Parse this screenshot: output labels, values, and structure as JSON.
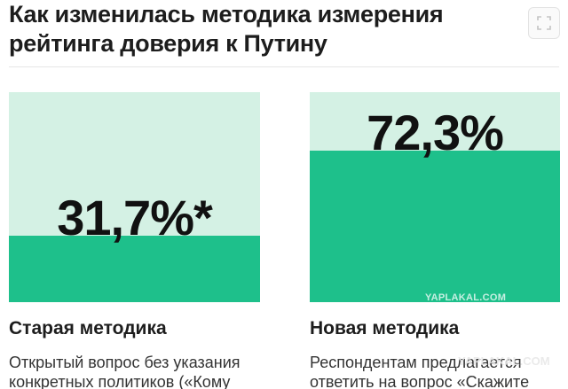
{
  "header": {
    "title": "Как изменилась методика измерения рейтинга доверия к Путину",
    "expand_icon": "expand-icon"
  },
  "chart_data": {
    "type": "bar",
    "categories": [
      "Старая методика",
      "Новая методика"
    ],
    "values": [
      31.7,
      72.3
    ],
    "value_labels": [
      "31,7%*",
      "72,3%"
    ],
    "ylim": [
      0,
      100
    ],
    "title": "Как изменилась методика измерения рейтинга доверия к Путину",
    "xlabel": "",
    "ylabel": "",
    "grid": false,
    "colors": {
      "fill": "#1ec08b",
      "background": "#d4f1e4"
    }
  },
  "methods": [
    {
      "title": "Старая методика",
      "description": "Открытый вопрос без указания конкретных политиков («Кому"
    },
    {
      "title": "Новая методика",
      "description": "Респондентам предлагается ответить на вопрос «Скажите"
    }
  ],
  "watermarks": [
    "YAPLAKAL.COM",
    "YAPLAKAL.COM"
  ]
}
